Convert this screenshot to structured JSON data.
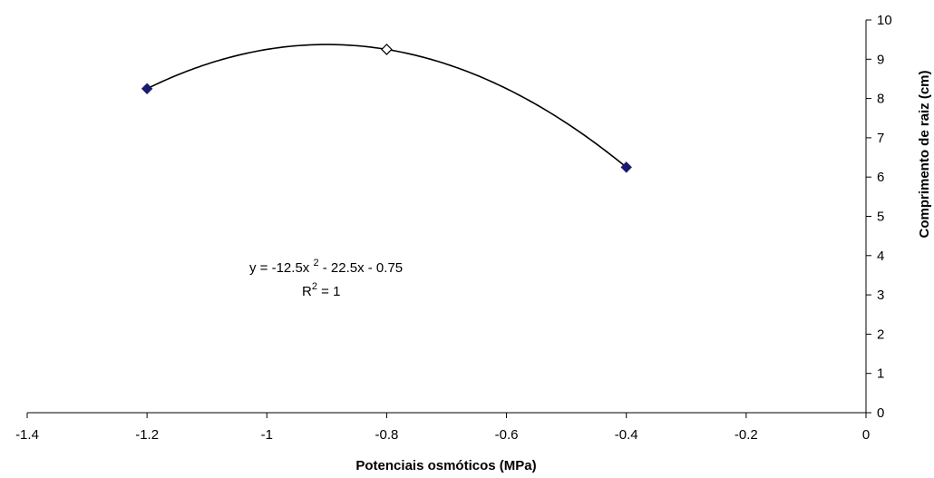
{
  "chart_data": {
    "type": "scatter",
    "xlabel": "Potenciais osmóticos (MPa)",
    "ylabel": "Comprimento de raiz (cm)",
    "xlim": [
      -1.4,
      0
    ],
    "ylim": [
      0,
      10
    ],
    "x_ticks": [
      "-1.4",
      "-1.2",
      "-1",
      "-0.8",
      "-0.6",
      "-0.4",
      "-0.2",
      "0"
    ],
    "y_ticks": [
      "0",
      "1",
      "2",
      "3",
      "4",
      "5",
      "6",
      "7",
      "8",
      "9",
      "10"
    ],
    "y_axis_position": "right",
    "grid": false,
    "legend": "none",
    "series": [
      {
        "points": [
          {
            "x": -1.2,
            "y": 8.25,
            "marker": "filled"
          },
          {
            "x": -0.8,
            "y": 9.25,
            "marker": "hollow"
          },
          {
            "x": -0.4,
            "y": 6.25,
            "marker": "filled"
          }
        ],
        "marker_color": "#1a1a6e"
      }
    ],
    "trendline": {
      "type": "polynomial-2",
      "coefficients": {
        "a": -12.5,
        "b": -22.5,
        "c": -0.75
      },
      "x_range": [
        -1.2,
        -0.4
      ],
      "equation_prefix": "y = -12.5x ",
      "equation_exp": "2",
      "equation_suffix": " - 22.5x - 0.75",
      "r2_prefix": "R",
      "r2_exp": "2",
      "r2_suffix": " = 1",
      "color": "#000000"
    }
  }
}
